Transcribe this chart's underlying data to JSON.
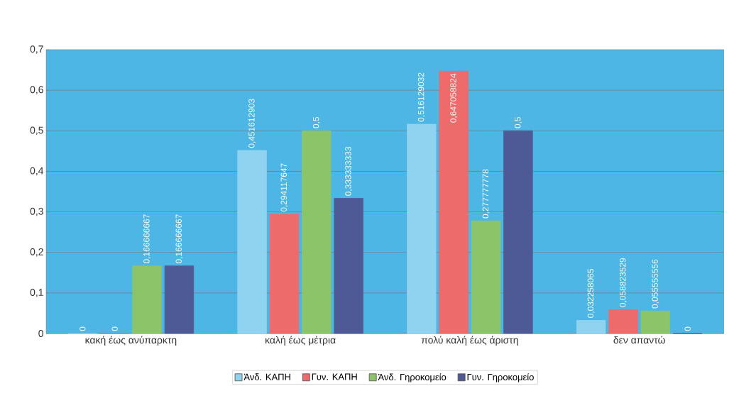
{
  "chart_data": {
    "type": "bar",
    "categories": [
      "κακή έως ανύπαρκτη",
      "καλή έως μέτρια",
      "πολύ καλή έως άριστη",
      "δεν απαντώ"
    ],
    "series": [
      {
        "name": "Άνδ. ΚΑΠΗ",
        "color": "#8fd3f0",
        "values": [
          0,
          0.451612903,
          0.516129032,
          0.032258065
        ],
        "value_labels": [
          "0",
          "0,451612903",
          "0,516129032",
          "0,032258065"
        ]
      },
      {
        "name": "Γυν. ΚΑΠΗ",
        "color": "#ee6b6b",
        "values": [
          0,
          0.294117647,
          0.647058824,
          0.058823529
        ],
        "value_labels": [
          "0",
          "0,294117647",
          "0,647058824",
          "0,058823529"
        ]
      },
      {
        "name": "Άνδ. Γηροκομείο",
        "color": "#8cc46a",
        "values": [
          0.166666667,
          0.5,
          0.277777778,
          0.055555556
        ],
        "value_labels": [
          "0,166666667",
          "0,5",
          "0,277777778",
          "0,055555556"
        ]
      },
      {
        "name": "Γυν. Γηροκομείο",
        "color": "#4d5a96",
        "values": [
          0.166666667,
          0.333333333,
          0.5,
          0
        ],
        "value_labels": [
          "0,166666667",
          "0,333333333",
          "0,5",
          "0"
        ]
      }
    ],
    "ylim": [
      0,
      0.7
    ],
    "yticks": [
      {
        "value": 0,
        "label": "0"
      },
      {
        "value": 0.1,
        "label": "0,1"
      },
      {
        "value": 0.2,
        "label": "0,2"
      },
      {
        "value": 0.3,
        "label": "0,3"
      },
      {
        "value": 0.4,
        "label": "0,4"
      },
      {
        "value": 0.5,
        "label": "0,5"
      },
      {
        "value": 0.6,
        "label": "0,6"
      },
      {
        "value": 0.7,
        "label": "0,7"
      }
    ],
    "grid": "y",
    "legend": "bottom"
  }
}
